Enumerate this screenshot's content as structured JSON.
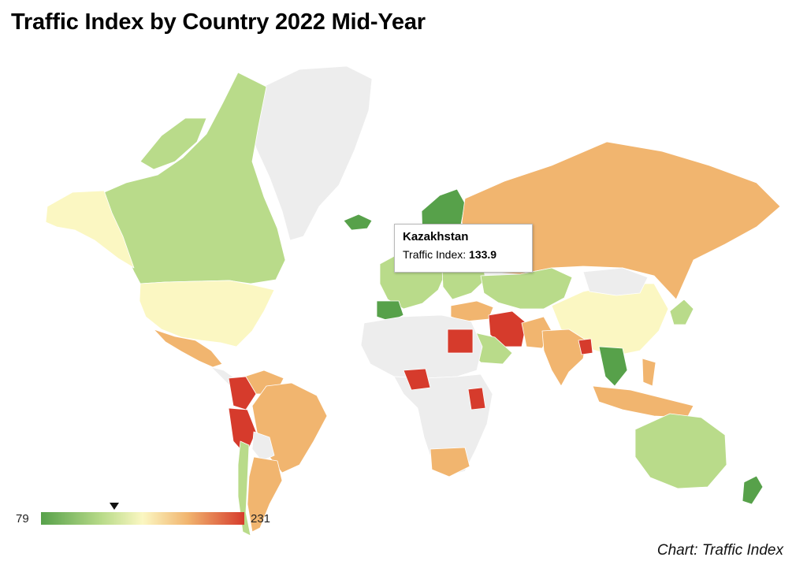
{
  "title": "Traffic Index by Country 2022 Mid-Year",
  "credit": "Chart: Traffic Index",
  "colors": {
    "low": "#57a14a",
    "low_mid": "#b9db8a",
    "mid": "#fbf7c2",
    "high_mid": "#f1b56f",
    "high": "#d63b2c",
    "no_data": "#ededed",
    "border": "#cfcfcf"
  },
  "legend": {
    "min": "79",
    "max": "231",
    "marker_value": 133.9
  },
  "tooltip": {
    "country": "Kazakhstan",
    "metric_label": "Traffic Index:",
    "value": "133.9"
  },
  "chart_data": {
    "type": "choropleth",
    "title": "Traffic Index by Country 2022 Mid-Year",
    "metric": "Traffic Index",
    "range": [
      79,
      231
    ],
    "highlighted": {
      "name": "Kazakhstan",
      "value": 133.9
    }
  }
}
